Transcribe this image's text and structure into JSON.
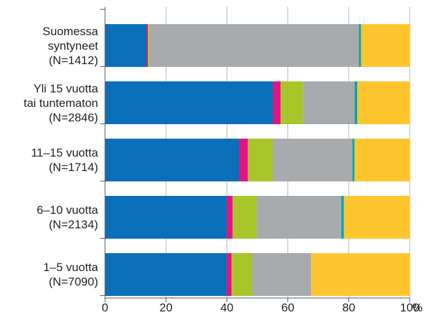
{
  "chart_data": {
    "type": "stacked-barh",
    "categories": [
      "Suomessa\nsyntyneet\n(N=1412)",
      "Yli 15 vuotta\ntai tuntematon\n(N=2846)",
      "11–15 vuotta\n(N=1714)",
      "6–10 vuotta\n(N=2134)",
      "1–5  vuotta\n(N=7090)"
    ],
    "series": [
      {
        "color": "#0a6fba",
        "values": [
          13.6,
          55.1,
          44.0,
          39.9,
          39.9
        ]
      },
      {
        "color": "#e0157f",
        "values": [
          0.5,
          2.5,
          2.9,
          2.0,
          1.6
        ]
      },
      {
        "color": "#a8c62a",
        "values": [
          0.5,
          7.3,
          8.2,
          7.9,
          6.8
        ]
      },
      {
        "color": "#a7abae",
        "values": [
          68.7,
          17.0,
          26.1,
          27.7,
          19.3
        ]
      },
      {
        "color": "#17a39a",
        "values": [
          0.7,
          0.9,
          0.7,
          0.9,
          0
        ]
      },
      {
        "color": "#fec52e",
        "values": [
          16.0,
          17.2,
          18.1,
          21.6,
          32.4
        ]
      }
    ],
    "xlabel": "%",
    "xlim": [
      0,
      100
    ],
    "xticks": [
      0,
      20,
      40,
      60,
      80,
      100
    ],
    "grid": true
  }
}
